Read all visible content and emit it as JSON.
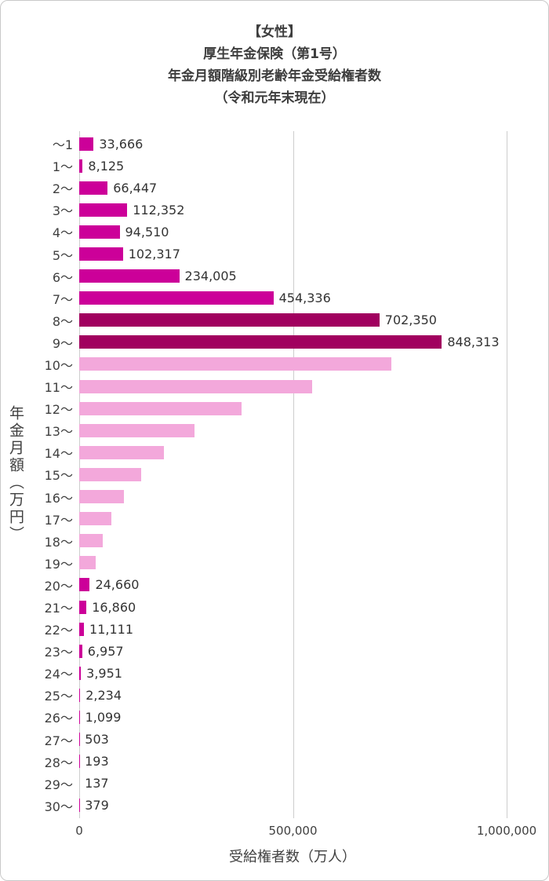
{
  "title": {
    "lines": [
      "【女性】",
      "厚生年金保険（第1号）",
      "年金月額階級別老齢年金受給権者数",
      "（令和元年末現在）"
    ]
  },
  "axes": {
    "y_label": "年金月額（万円）",
    "x_label": "受給権者数（万人）",
    "x_ticks": [
      {
        "value": 0,
        "label": "0"
      },
      {
        "value": 500000,
        "label": "500,000"
      },
      {
        "value": 1000000,
        "label": "1,000,000"
      }
    ]
  },
  "colors": {
    "bar_bright": "#CC0099",
    "bar_deep": "#A1005F",
    "bar_light": "#F3A8DB",
    "gridline": "#CDCDCD",
    "text": "#404040"
  },
  "chart_data": {
    "type": "bar",
    "orientation": "horizontal",
    "title": "【女性】厚生年金保険（第1号）年金月額階級別老齢年金受給権者数（令和元年末現在）",
    "xlabel": "受給権者数（万人）",
    "ylabel": "年金月額（万円）",
    "xlim": [
      0,
      1000000
    ],
    "grid": true,
    "gridlines_at": [
      0,
      500000,
      1000000
    ],
    "categories": [
      "～1",
      "1～",
      "2～",
      "3～",
      "4～",
      "5～",
      "6～",
      "7～",
      "8～",
      "9～",
      "10～",
      "11～",
      "12～",
      "13～",
      "14～",
      "15～",
      "16～",
      "17～",
      "18～",
      "19～",
      "20～",
      "21～",
      "22～",
      "23～",
      "24～",
      "25～",
      "26～",
      "27～",
      "28～",
      "29～",
      "30～"
    ],
    "values": [
      33666,
      8125,
      66447,
      112352,
      94510,
      102317,
      234005,
      454336,
      702350,
      848313,
      730000,
      545000,
      380000,
      270000,
      198000,
      145000,
      105000,
      76000,
      55000,
      38000,
      24660,
      16860,
      11111,
      6957,
      3951,
      2234,
      1099,
      503,
      193,
      137,
      379
    ],
    "data_labels": [
      "33,666",
      "8,125",
      "66,447",
      "112,352",
      "94,510",
      "102,317",
      "234,005",
      "454,336",
      "702,350",
      "848,313",
      "",
      "",
      "",
      "",
      "",
      "",
      "",
      "",
      "",
      "",
      "24,660",
      "16,860",
      "11,111",
      "6,957",
      "3,951",
      "2,234",
      "1,099",
      "503",
      "193",
      "137",
      "379"
    ],
    "tones": [
      "bright",
      "bright",
      "bright",
      "bright",
      "bright",
      "bright",
      "bright",
      "bright",
      "deep",
      "deep",
      "light",
      "light",
      "light",
      "light",
      "light",
      "light",
      "light",
      "light",
      "light",
      "light",
      "bright",
      "bright",
      "bright",
      "bright",
      "bright",
      "bright",
      "bright",
      "bright",
      "bright",
      "bright",
      "bright"
    ]
  }
}
